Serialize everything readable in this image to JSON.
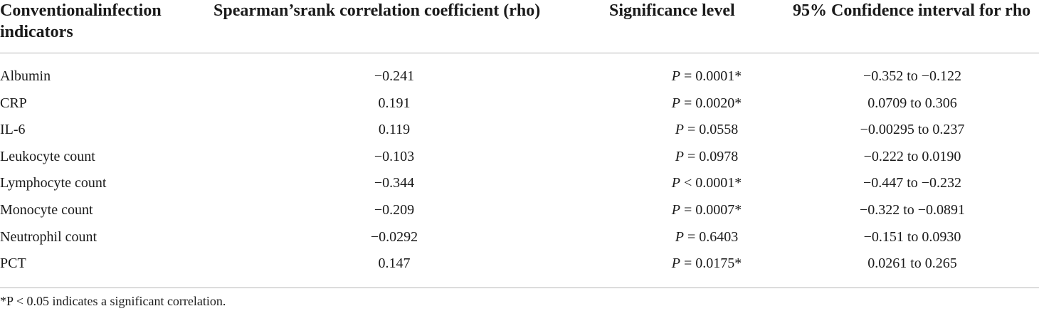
{
  "table": {
    "headers": {
      "indicator": "Conventionalinfection indicators",
      "rho": "Spearman’srank correlation coefficient (rho)",
      "significance": "Significance level",
      "ci": "95% Confidence interval for rho"
    },
    "rows": [
      {
        "indicator": "Albumin",
        "rho": "−0.241",
        "p_symbol": "P",
        "p_rel": " = 0.0001*",
        "ci": "−0.352 to −0.122"
      },
      {
        "indicator": "CRP",
        "rho": "0.191",
        "p_symbol": "P",
        "p_rel": " = 0.0020*",
        "ci": "0.0709 to 0.306"
      },
      {
        "indicator": "IL-6",
        "rho": "0.119",
        "p_symbol": "P",
        "p_rel": " = 0.0558",
        "ci": "−0.00295 to 0.237"
      },
      {
        "indicator": "Leukocyte count",
        "rho": "−0.103",
        "p_symbol": "P",
        "p_rel": " = 0.0978",
        "ci": "−0.222 to 0.0190"
      },
      {
        "indicator": "Lymphocyte count",
        "rho": "−0.344",
        "p_symbol": "P",
        "p_rel": " < 0.0001*",
        "ci": "−0.447 to −0.232"
      },
      {
        "indicator": "Monocyte count",
        "rho": "−0.209",
        "p_symbol": "P",
        "p_rel": " = 0.0007*",
        "ci": "−0.322 to −0.0891"
      },
      {
        "indicator": "Neutrophil count",
        "rho": "−0.0292",
        "p_symbol": "P",
        "p_rel": " = 0.6403",
        "ci": "−0.151 to 0.0930"
      },
      {
        "indicator": "PCT",
        "rho": "0.147",
        "p_symbol": "P",
        "p_rel": " = 0.0175*",
        "ci": "0.0261 to 0.265"
      }
    ]
  },
  "footnote": "*P < 0.05 indicates a significant correlation."
}
